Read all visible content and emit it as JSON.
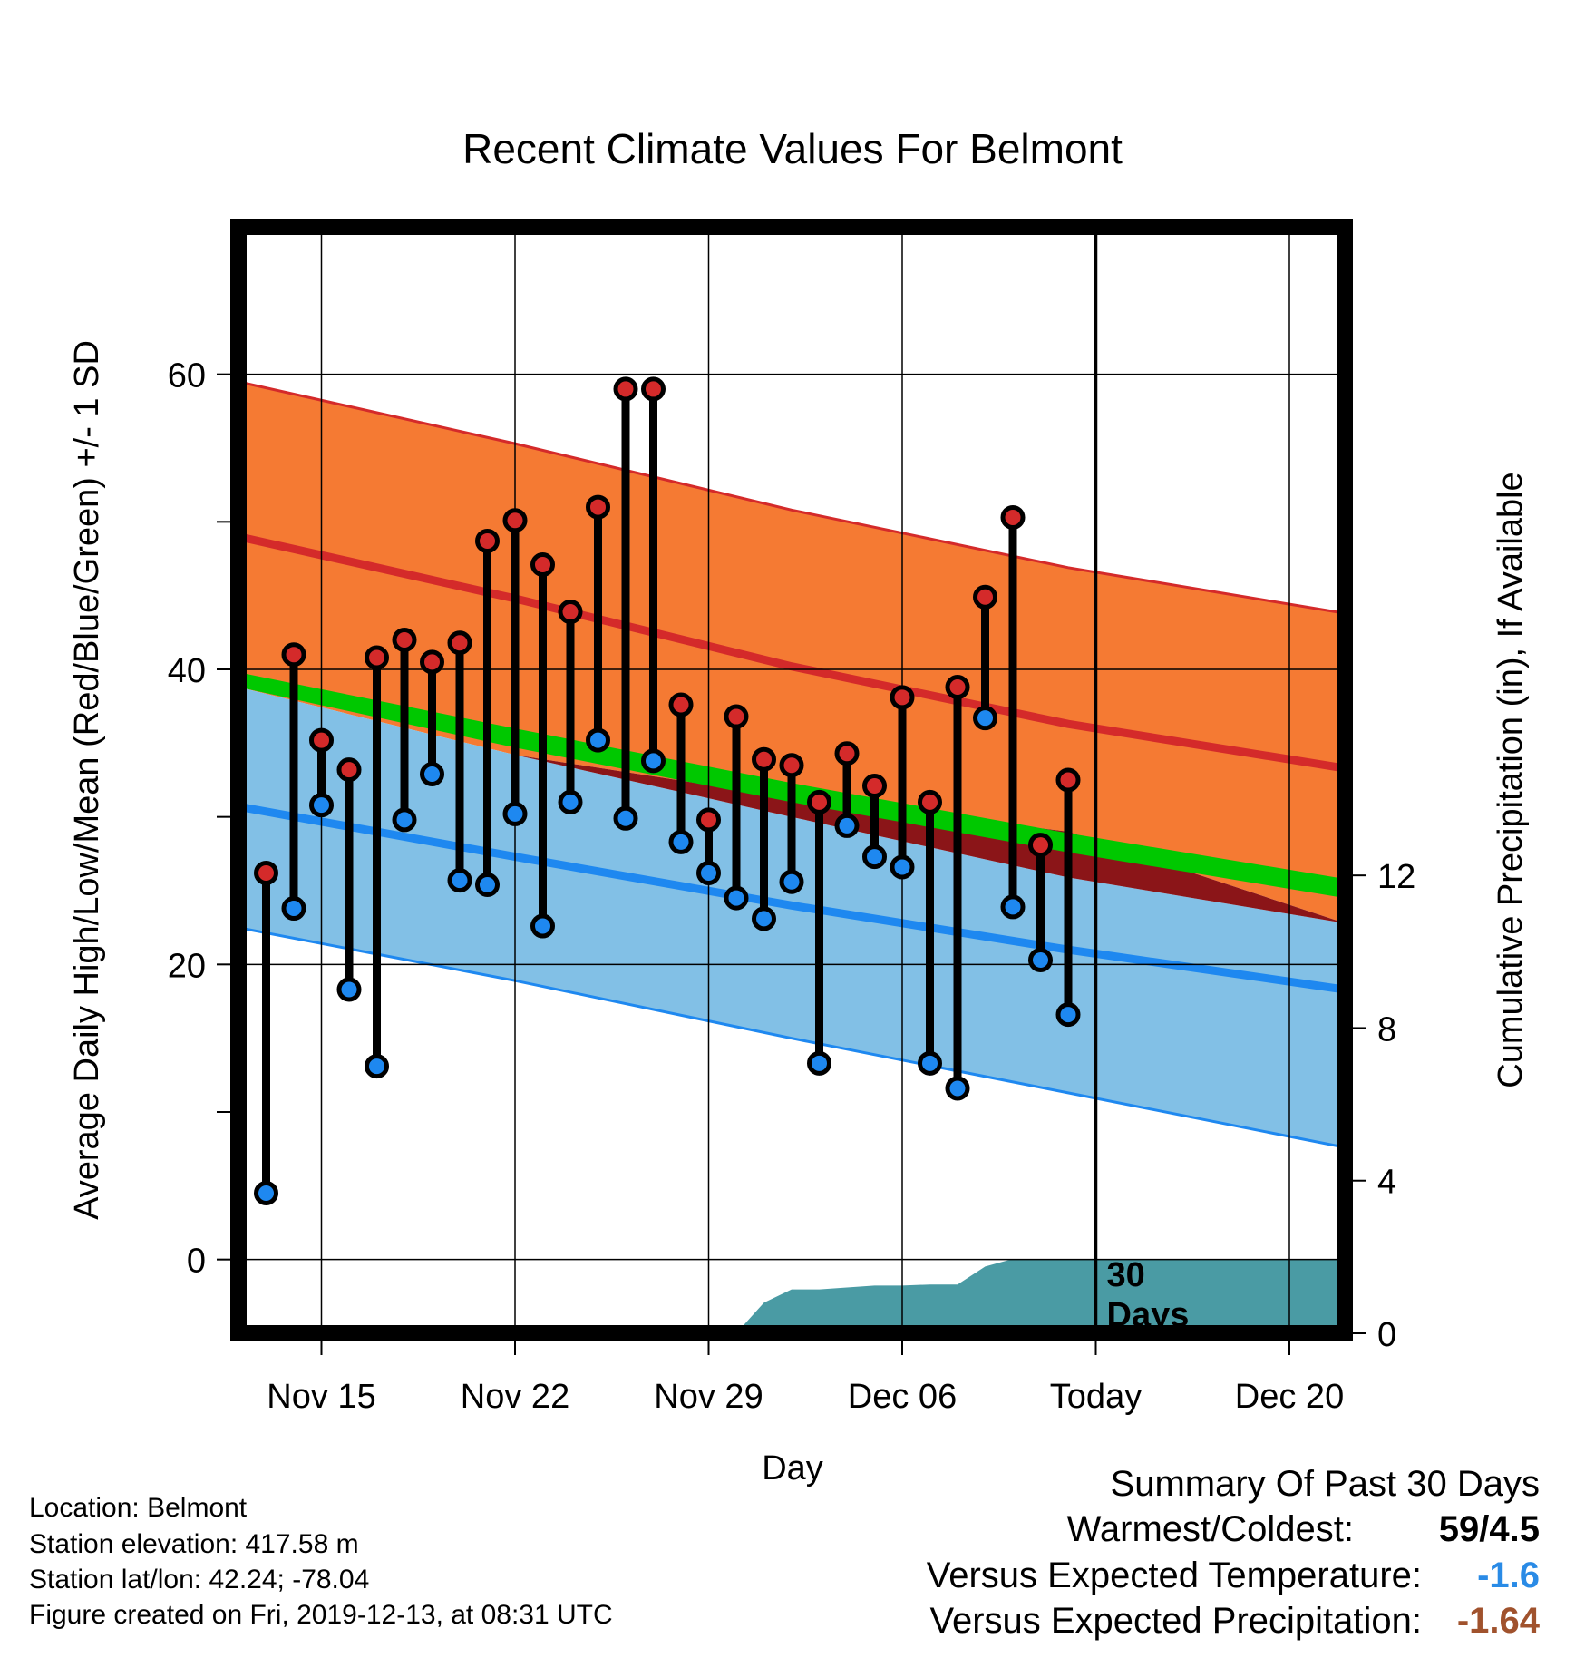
{
  "chart_data": {
    "type": "line",
    "title": "Recent Climate Values For Belmont",
    "xlabel": "Day",
    "ylabel_left": "Average Daily High/Low/Mean (Red/Blue/Green) +/- 1 SD",
    "ylabel_right": "Cumulative Precipitation (in), If Available",
    "x_range": [
      "2019-11-12",
      "2019-12-22"
    ],
    "y_left_range": [
      -5,
      70
    ],
    "y_right_range": [
      0,
      29
    ],
    "x_ticks": [
      {
        "date": "2019-11-15",
        "label": "Nov 15"
      },
      {
        "date": "2019-11-22",
        "label": "Nov 22"
      },
      {
        "date": "2019-11-29",
        "label": "Nov 29"
      },
      {
        "date": "2019-12-06",
        "label": "Dec 06"
      },
      {
        "date": "2019-12-13",
        "label": "Today"
      },
      {
        "date": "2019-12-20",
        "label": "Dec 20"
      }
    ],
    "y_left_ticks": [
      0,
      20,
      40,
      60
    ],
    "y_right_ticks": [
      0,
      4,
      8,
      12
    ],
    "grid": true,
    "today_marker": {
      "date": "2019-12-13",
      "label_line1": "30",
      "label_line2": "Days"
    },
    "normals": {
      "dates": [
        "2019-11-12",
        "2019-11-22",
        "2019-12-02",
        "2019-12-12",
        "2019-12-22"
      ],
      "high_mean": [
        49,
        44.8,
        40.2,
        36.3,
        33.3
      ],
      "high_upper": [
        59.5,
        55.3,
        50.8,
        46.9,
        43.8
      ],
      "low_mean": [
        30.7,
        27.3,
        24.0,
        21.0,
        18.3
      ],
      "low_lower": [
        22.5,
        18.9,
        15.0,
        11.3,
        7.6
      ],
      "mean_upper": [
        39.8,
        36.0,
        32.3,
        28.9,
        25.8
      ],
      "mean_lower": [
        38.8,
        34.2,
        30.0,
        25.9,
        22.8
      ],
      "high_lower_edge": [
        38.8,
        34.2,
        31.3,
        29.0,
        22.8
      ],
      "low_upper_edge": [
        38.8,
        34.2,
        30.0,
        25.9,
        22.8
      ]
    },
    "series": [
      {
        "name": "Daily High",
        "dates": [
          "2019-11-13",
          "2019-11-14",
          "2019-11-15",
          "2019-11-16",
          "2019-11-17",
          "2019-11-18",
          "2019-11-19",
          "2019-11-20",
          "2019-11-21",
          "2019-11-22",
          "2019-11-23",
          "2019-11-24",
          "2019-11-25",
          "2019-11-26",
          "2019-11-27",
          "2019-11-28",
          "2019-11-29",
          "2019-11-30",
          "2019-12-01",
          "2019-12-02",
          "2019-12-03",
          "2019-12-04",
          "2019-12-05",
          "2019-12-06",
          "2019-12-07",
          "2019-12-08",
          "2019-12-09",
          "2019-12-10",
          "2019-12-11",
          "2019-12-12"
        ],
        "values": [
          26.2,
          41,
          35.2,
          33.2,
          40.8,
          42,
          40.5,
          41.8,
          48.7,
          50.1,
          47.1,
          43.9,
          51,
          59,
          59,
          37.6,
          29.8,
          36.8,
          33.9,
          33.5,
          31,
          34.3,
          32.1,
          38.1,
          31,
          38.8,
          44.9,
          50.3,
          28.1,
          32.5
        ]
      },
      {
        "name": "Daily Low",
        "dates": [
          "2019-11-13",
          "2019-11-14",
          "2019-11-15",
          "2019-11-16",
          "2019-11-17",
          "2019-11-18",
          "2019-11-19",
          "2019-11-20",
          "2019-11-21",
          "2019-11-22",
          "2019-11-23",
          "2019-11-24",
          "2019-11-25",
          "2019-11-26",
          "2019-11-27",
          "2019-11-28",
          "2019-11-29",
          "2019-11-30",
          "2019-12-01",
          "2019-12-02",
          "2019-12-03",
          "2019-12-04",
          "2019-12-05",
          "2019-12-06",
          "2019-12-07",
          "2019-12-08",
          "2019-12-09",
          "2019-12-10",
          "2019-12-11",
          "2019-12-12"
        ],
        "values": [
          4.5,
          23.8,
          30.8,
          18.3,
          13.1,
          29.8,
          32.9,
          25.7,
          25.4,
          30.2,
          22.6,
          31,
          35.2,
          29.9,
          33.8,
          28.3,
          26.2,
          24.5,
          23.1,
          25.6,
          13.3,
          29.4,
          27.3,
          26.6,
          13.3,
          11.6,
          36.7,
          23.9,
          20.3,
          16.6
        ]
      },
      {
        "name": "Cumulative Precipitation",
        "dates": [
          "2019-11-12",
          "2019-11-29",
          "2019-11-30",
          "2019-12-01",
          "2019-12-02",
          "2019-12-03",
          "2019-12-04",
          "2019-12-05",
          "2019-12-06",
          "2019-12-07",
          "2019-12-08",
          "2019-12-09",
          "2019-12-10",
          "2019-12-11",
          "2019-12-12",
          "2019-12-22"
        ],
        "values": [
          0,
          0,
          0,
          0.8,
          1.15,
          1.15,
          1.2,
          1.25,
          1.25,
          1.28,
          1.28,
          1.75,
          1.95,
          1.95,
          1.95,
          1.95
        ]
      }
    ]
  },
  "info": {
    "location": "Location: Belmont",
    "elevation": "Station elevation: 417.58 m",
    "latlon": "Station lat/lon: 42.24; -78.04",
    "created": "Figure created on Fri, 2019-12-13, at 08:31 UTC"
  },
  "summary": {
    "title": "Summary Of Past 30 Days",
    "warmest_label": "Warmest/Coldest:",
    "warmest_value": "59/4.5",
    "temp_label": "Versus Expected Temperature:",
    "temp_value": "-1.6",
    "temp_color": "#2a8be6",
    "precip_label": "Versus Expected Precipitation:",
    "precip_value": "-1.64",
    "precip_color": "#a0522d"
  },
  "colors": {
    "high_band": "#f57a33",
    "high_line": "#d42a2a",
    "low_band": "#82c0e6",
    "low_line": "#1e88f0",
    "mean_band": "#00c800",
    "overlap_band": "#8b1518",
    "precip": "#4a9ba4",
    "high_dot": "#d42a2a",
    "low_dot": "#1e88f0"
  }
}
